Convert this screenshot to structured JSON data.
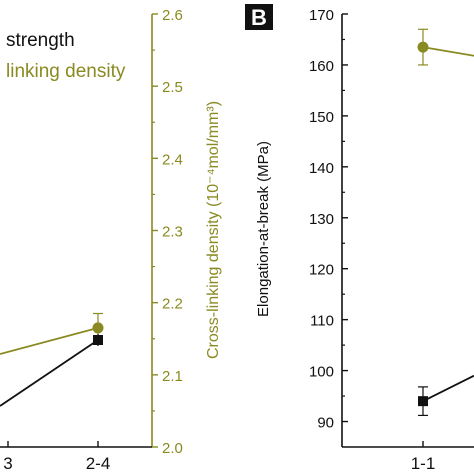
{
  "colors": {
    "black": "#111111",
    "olive": "#8a8a22"
  },
  "chart_data": [
    {
      "type": "line",
      "panel_label": "",
      "categories": [
        "3",
        "2-4"
      ],
      "legend": {
        "placement": "top",
        "entries": [
          "strength",
          "linking density"
        ]
      },
      "ylabel": "Cross-linking density (10⁻⁴mol/mm³)",
      "ylim": [
        2.0,
        2.6
      ],
      "y_ticks": [
        "2.0",
        "2.1",
        "2.2",
        "2.3",
        "2.4",
        "2.5",
        "2.6"
      ],
      "series": [
        {
          "color": "#111111",
          "marker": "square",
          "axis": "left",
          "values": [
            null,
            null
          ]
        },
        {
          "color": "#8a8a22",
          "marker": "circle",
          "axis": "right",
          "values": [
            null,
            2.165
          ],
          "error": [
            null,
            0.02
          ]
        }
      ]
    },
    {
      "type": "line",
      "panel_label": "B",
      "categories": [
        "1-1"
      ],
      "ylabel": "Elongation-at-break (MPa)",
      "ylim": [
        85,
        170
      ],
      "y_ticks": [
        "90",
        "100",
        "110",
        "120",
        "130",
        "140",
        "150",
        "160",
        "170"
      ],
      "series": [
        {
          "color": "#8a8a22",
          "marker": "circle",
          "values": [
            163.5
          ],
          "error": [
            3.5
          ]
        },
        {
          "color": "#111111",
          "marker": "square",
          "values": [
            94
          ],
          "error": [
            2.8
          ]
        }
      ]
    }
  ]
}
